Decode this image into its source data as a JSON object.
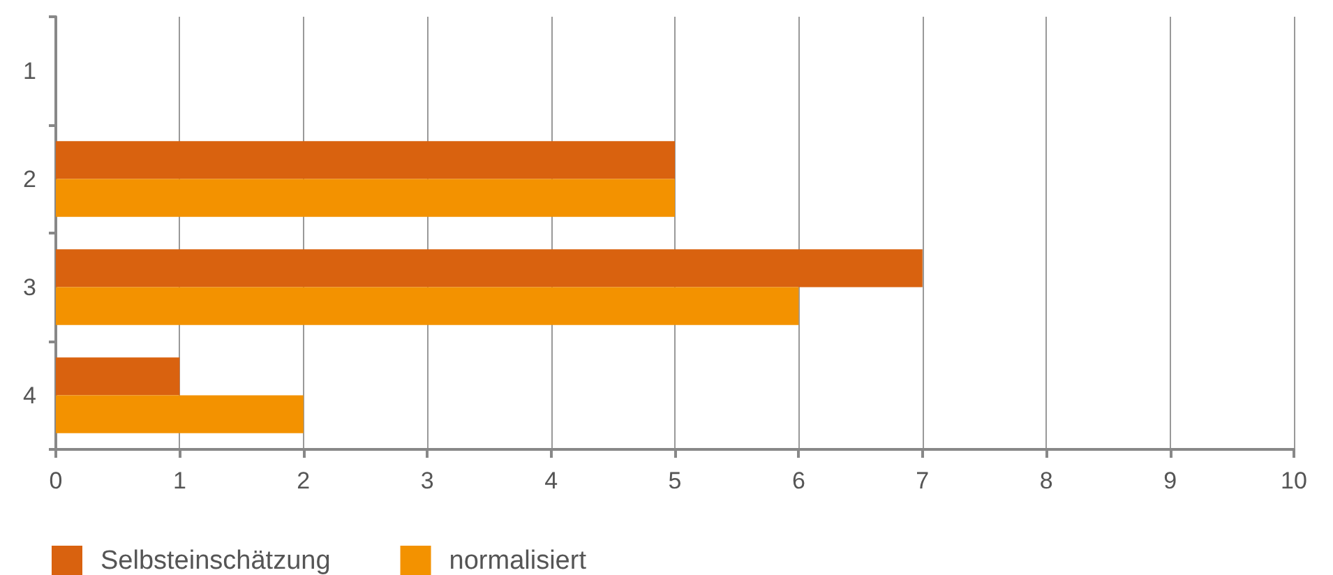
{
  "chart_data": {
    "type": "bar",
    "orientation": "horizontal",
    "categories": [
      "1",
      "2",
      "3",
      "4"
    ],
    "series": [
      {
        "name": "Selbsteinschätzung",
        "color": "#d9620f",
        "values": [
          0,
          5,
          7,
          1
        ]
      },
      {
        "name": "normalisiert",
        "color": "#f39200",
        "values": [
          0,
          5,
          6,
          2
        ]
      }
    ],
    "xlim": [
      0,
      10
    ],
    "xticks": [
      0,
      1,
      2,
      3,
      4,
      5,
      6,
      7,
      8,
      9,
      10
    ],
    "grid": "x",
    "legend": "bottom left"
  }
}
